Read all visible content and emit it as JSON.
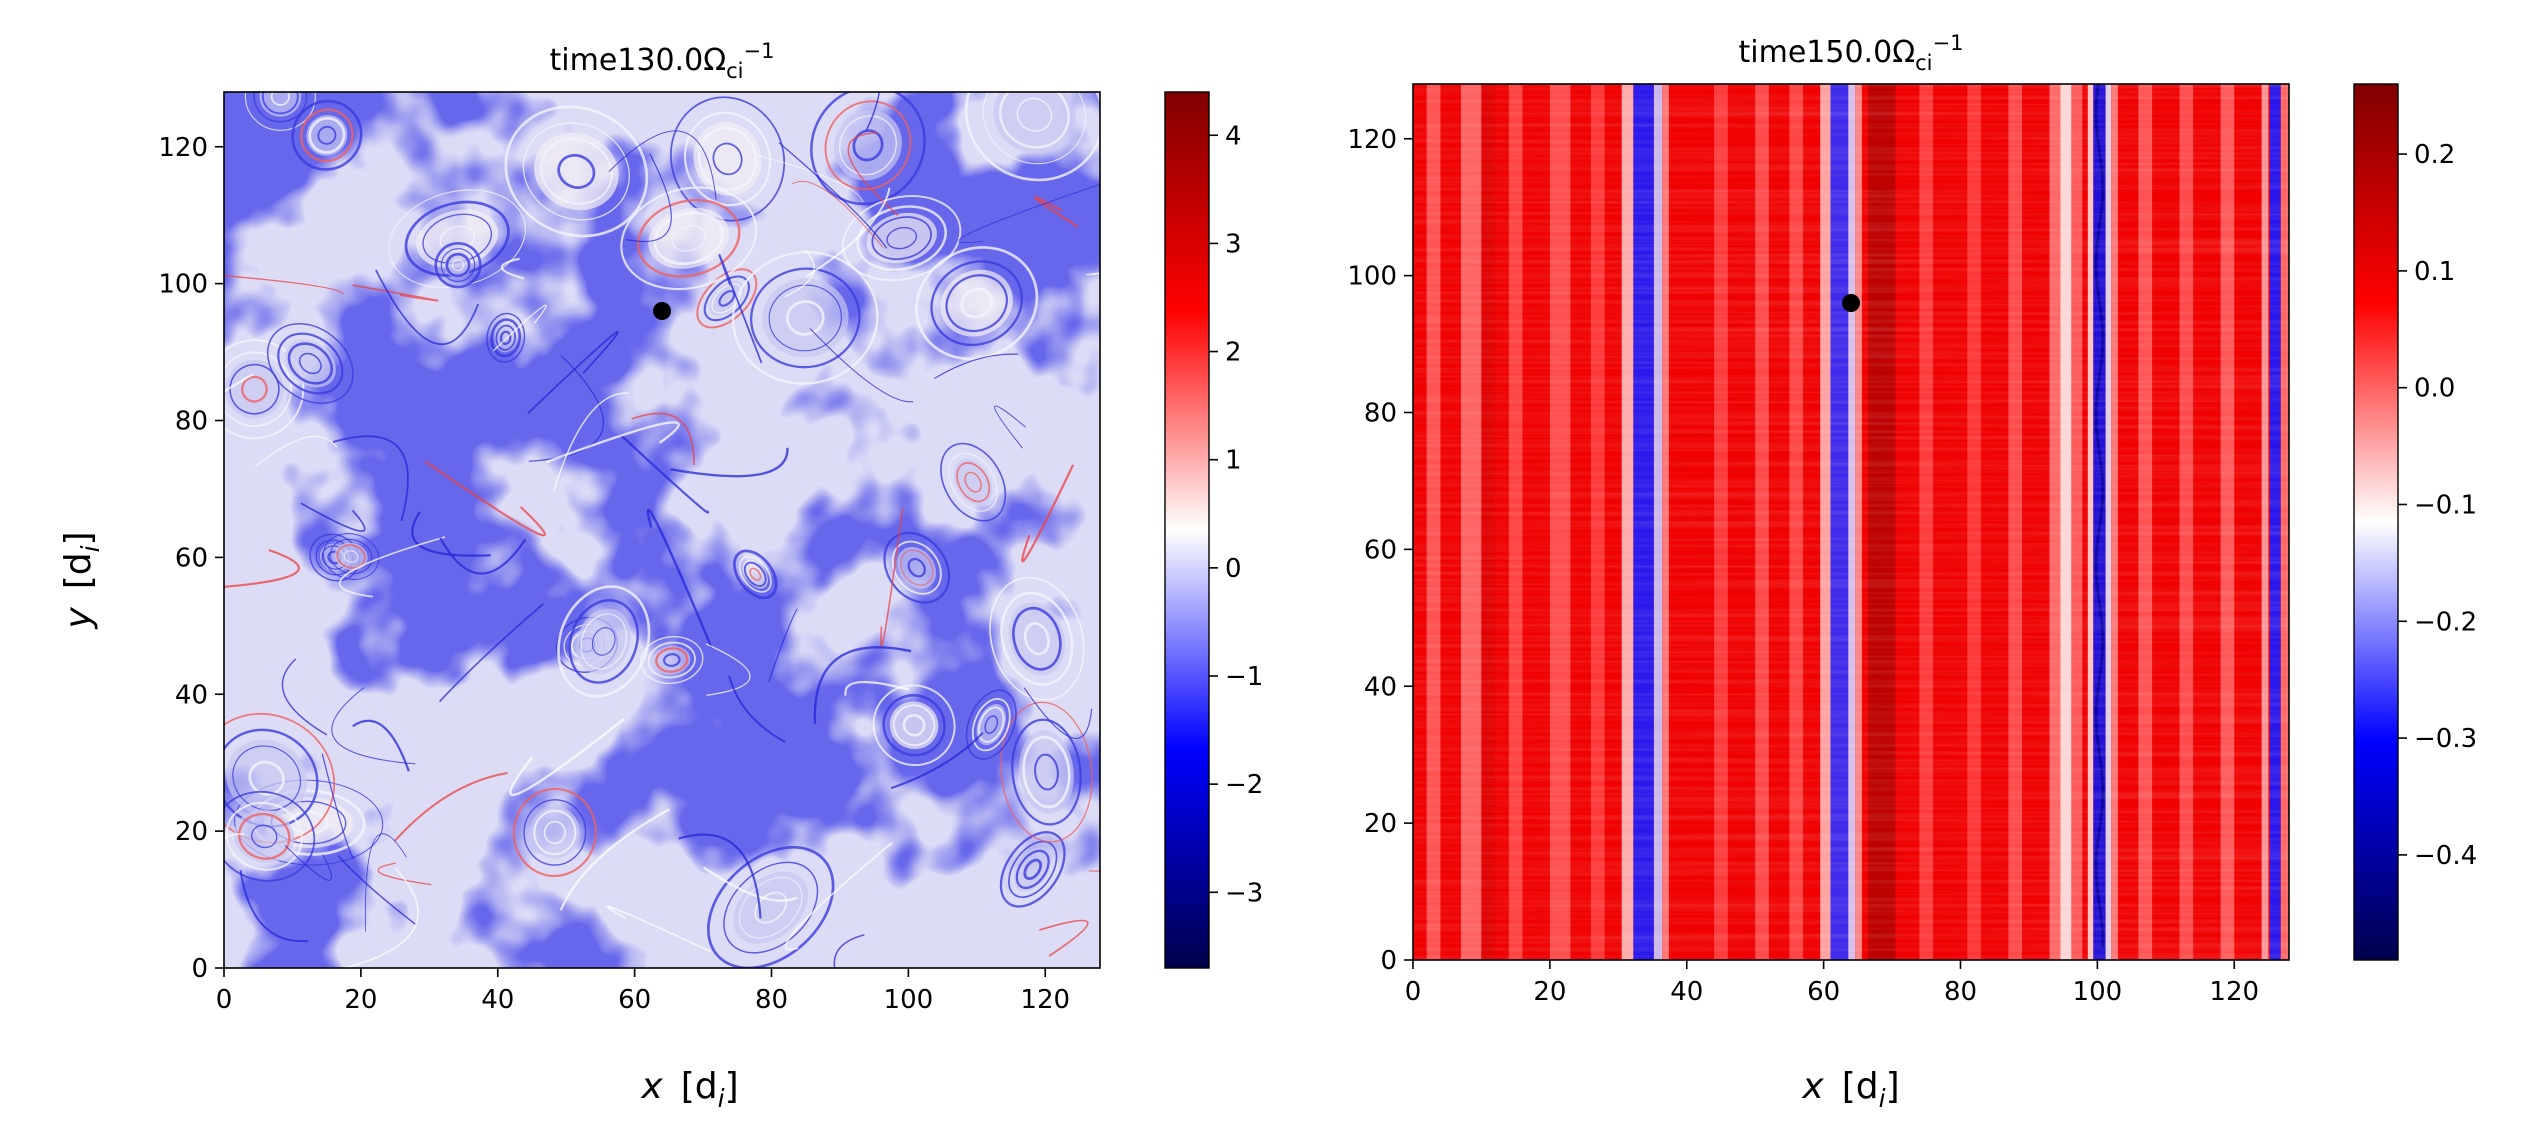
{
  "chart_data": [
    {
      "type": "heatmap",
      "title_main": "time130.0",
      "title_unit_base": "Ω",
      "title_unit_sub": "ci",
      "title_unit_sup": "−1",
      "xlabel_var": "x",
      "xlabel_unit": "[d",
      "xlabel_unit_sub": "i",
      "xlabel_unit_end": "]",
      "ylabel_var": "y",
      "ylabel_unit": "[d",
      "ylabel_unit_sub": "i",
      "ylabel_unit_end": "]",
      "xlim": [
        0,
        128
      ],
      "ylim": [
        0,
        128
      ],
      "xticks": [
        0,
        20,
        40,
        60,
        80,
        100,
        120
      ],
      "yticks": [
        0,
        20,
        40,
        60,
        80,
        100,
        120
      ],
      "colormap": "seismic",
      "colorbar": {
        "min": -3.7,
        "max": 4.4,
        "ticks": [
          -3,
          -2,
          -1,
          0,
          1,
          2,
          3,
          4
        ]
      },
      "marker": {
        "x": 64,
        "y": 96,
        "color": "#000000"
      },
      "field": "turbulent"
    },
    {
      "type": "heatmap",
      "title_main": "time150.0",
      "title_unit_base": "Ω",
      "title_unit_sub": "ci",
      "title_unit_sup": "−1",
      "xlabel_var": "x",
      "xlabel_unit": "[d",
      "xlabel_unit_sub": "i",
      "xlabel_unit_end": "]",
      "xlim": [
        0,
        128
      ],
      "ylim": [
        0,
        128
      ],
      "xticks": [
        0,
        20,
        40,
        60,
        80,
        100,
        120
      ],
      "yticks": [
        0,
        20,
        40,
        60,
        80,
        100,
        120
      ],
      "colormap": "seismic",
      "colorbar": {
        "min": -0.49,
        "max": 0.26,
        "ticks": [
          -0.4,
          -0.3,
          -0.2,
          -0.1,
          0.0,
          0.1,
          0.2
        ]
      },
      "marker": {
        "x": 64,
        "y": 96,
        "color": "#000000"
      },
      "field": "stripes"
    }
  ]
}
